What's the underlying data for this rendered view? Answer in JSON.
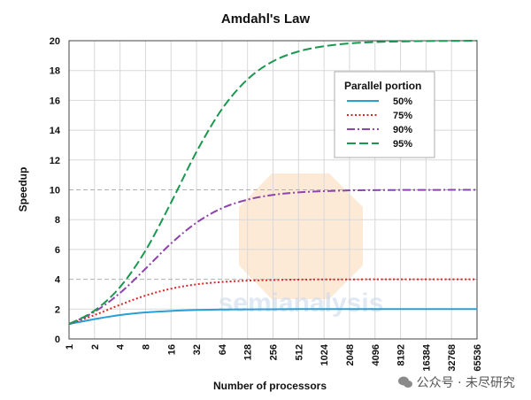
{
  "chart_data": {
    "type": "line",
    "title": "Amdahl's Law",
    "xlabel": "Number of processors",
    "ylabel": "Speedup",
    "xscale": "log2",
    "x_ticks": [
      "1",
      "2",
      "4",
      "8",
      "16",
      "32",
      "64",
      "128",
      "256",
      "512",
      "1024",
      "2048",
      "4096",
      "8192",
      "16384",
      "32768",
      "65536"
    ],
    "x": [
      1,
      2,
      4,
      8,
      16,
      32,
      64,
      128,
      256,
      512,
      1024,
      2048,
      4096,
      8192,
      16384,
      32768,
      65536
    ],
    "ylim": [
      0,
      20
    ],
    "y_ticks": [
      "0",
      "2",
      "4",
      "6",
      "8",
      "10",
      "12",
      "14",
      "16",
      "18",
      "20"
    ],
    "grid": true,
    "legend": {
      "title": "Parallel portion",
      "placement": "top-right"
    },
    "series": [
      {
        "name": "50%",
        "color": "#2a9fd6",
        "dash": "solid",
        "values": [
          1.0,
          1.33,
          1.6,
          1.78,
          1.88,
          1.94,
          1.97,
          1.98,
          1.99,
          2.0,
          2.0,
          2.0,
          2.0,
          2.0,
          2.0,
          2.0,
          2.0
        ]
      },
      {
        "name": "75%",
        "color": "#d62728",
        "dash": "dotted",
        "values": [
          1.0,
          1.6,
          2.29,
          2.91,
          3.37,
          3.66,
          3.82,
          3.91,
          3.95,
          3.98,
          3.99,
          3.99,
          4.0,
          4.0,
          4.0,
          4.0,
          4.0
        ]
      },
      {
        "name": "90%",
        "color": "#8e44ad",
        "dash": "dashdot",
        "values": [
          1.0,
          1.82,
          3.08,
          4.71,
          6.4,
          7.8,
          8.77,
          9.34,
          9.66,
          9.83,
          9.91,
          9.96,
          9.98,
          9.99,
          9.99,
          10.0,
          10.0
        ]
      },
      {
        "name": "95%",
        "color": "#1a9850",
        "dash": "dashed",
        "values": [
          1.0,
          1.9,
          3.48,
          5.93,
          9.14,
          12.55,
          15.42,
          17.41,
          18.62,
          19.28,
          19.63,
          19.82,
          19.91,
          19.95,
          19.98,
          19.99,
          20.0
        ]
      }
    ]
  },
  "watermark": {
    "text": "semianalysis"
  },
  "footer": {
    "account": "公众号 · 未尽研究"
  }
}
